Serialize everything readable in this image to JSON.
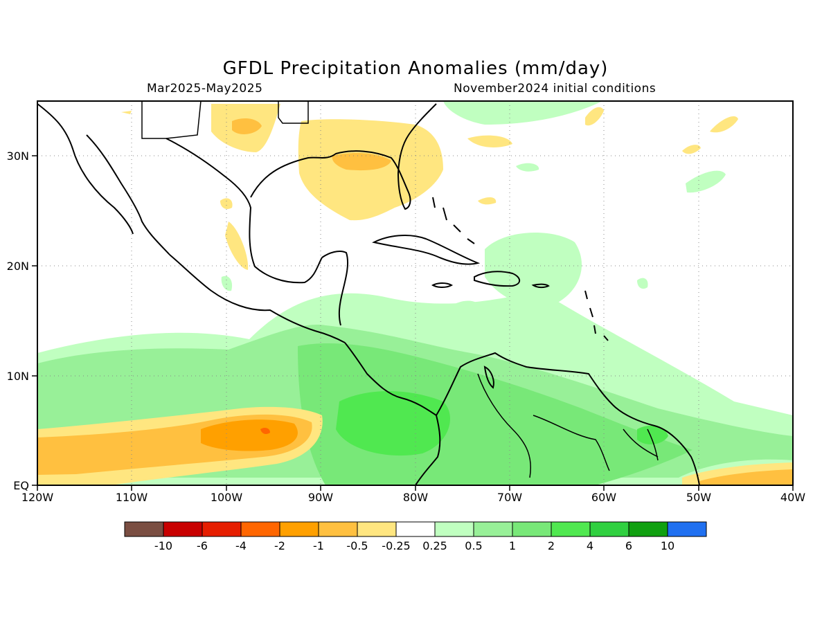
{
  "title": "GFDL Precipitation Anomalies (mm/day)",
  "period": "Mar2025-May2025",
  "initial_conditions": "November2024 initial conditions",
  "map": {
    "lon_ticks": [
      "120W",
      "110W",
      "100W",
      "90W",
      "80W",
      "70W",
      "60W",
      "50W",
      "40W"
    ],
    "lat_ticks": [
      "EQ",
      "10N",
      "20N",
      "30N"
    ],
    "extent": {
      "lon": [
        -120,
        -40
      ],
      "lat": [
        0,
        35
      ]
    },
    "grid": "dotted"
  },
  "colorbar": {
    "colors": [
      "#7a4e42",
      "#c80000",
      "#e61e00",
      "#ff6600",
      "#ffa000",
      "#ffc040",
      "#ffe680",
      "#ffffff",
      "#c0ffc0",
      "#98f098",
      "#78e878",
      "#50e850",
      "#30d040",
      "#10a010",
      "#2070f0"
    ],
    "labels": [
      "-10",
      "-6",
      "-4",
      "-2",
      "-1",
      "-0.5",
      "-0.25",
      "0.25",
      "0.5",
      "1",
      "2",
      "4",
      "6",
      "10"
    ]
  }
}
